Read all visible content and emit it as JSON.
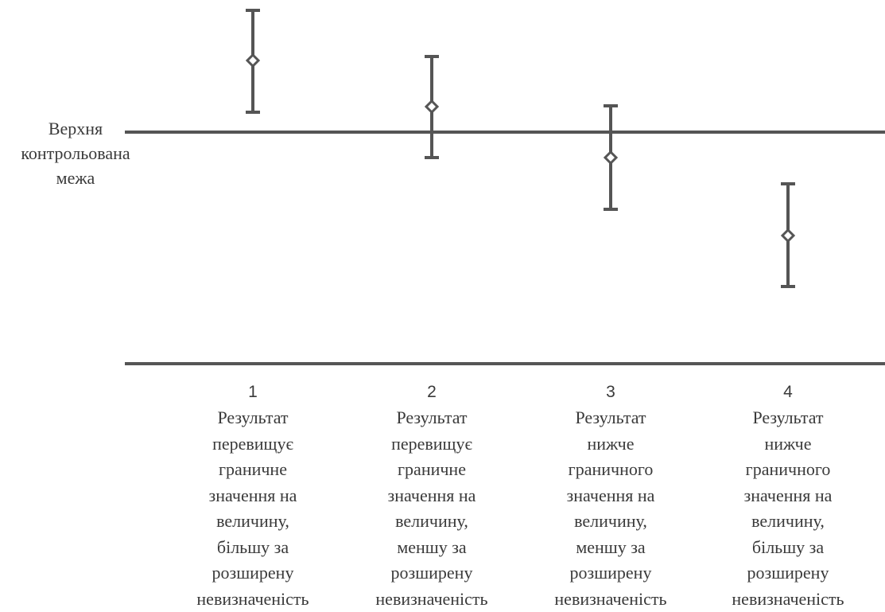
{
  "upper_limit_label": [
    "Верхня",
    "контрольована",
    "межа"
  ],
  "cases": [
    {
      "number": "1",
      "lines": [
        "Результат",
        "перевищує",
        "граничне",
        "значення на",
        "величину,",
        "більшу за",
        "розширену",
        "невизначеність"
      ]
    },
    {
      "number": "2",
      "lines": [
        "Результат",
        "перевищує",
        "граничне",
        "значення на",
        "величину,",
        "меншу за",
        "розширену",
        "невизначеність"
      ]
    },
    {
      "number": "3",
      "lines": [
        "Результат",
        "нижче",
        "граничного",
        "значення на",
        "величину,",
        "меншу за",
        "розширену",
        "невизначеність"
      ]
    },
    {
      "number": "4",
      "lines": [
        "Результат",
        "нижче",
        "граничного",
        "значення на",
        "величину,",
        "більшу за",
        "розширену",
        "невизначеність"
      ]
    }
  ],
  "colors": {
    "stroke": "#555555",
    "text": "#3a3a3a",
    "background": "#ffffff"
  }
}
